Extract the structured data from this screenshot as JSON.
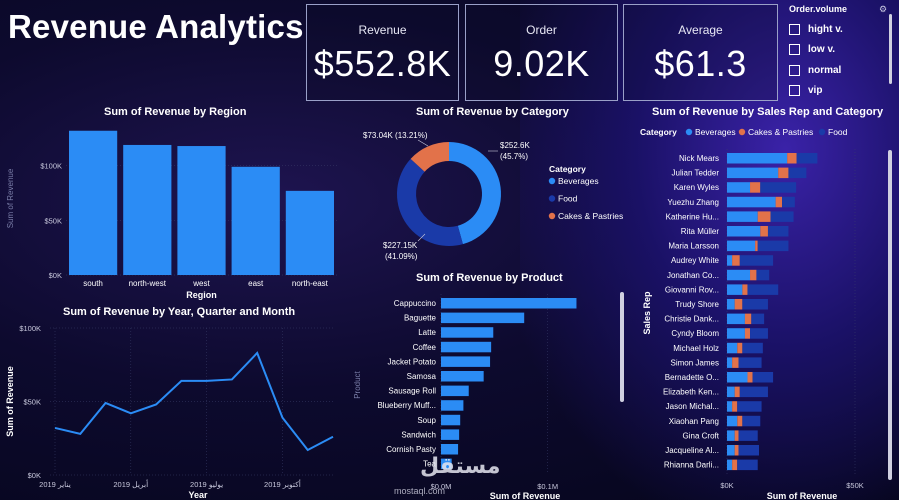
{
  "title": "Revenue Analytics",
  "kpis": [
    {
      "label": "Revenue",
      "value": "$552.8K"
    },
    {
      "label": "Order",
      "value": "9.02K"
    },
    {
      "label": "Average",
      "value": "$61.3"
    }
  ],
  "slicer": {
    "title": "Order.volume",
    "items": [
      "hight v.",
      "low v.",
      "normal",
      "vip"
    ]
  },
  "colors": {
    "beverages": "#2b8cf5",
    "food": "#1a3aa8",
    "cakes": "#e2724a"
  },
  "watermark": {
    "arabic": "مستقل",
    "latin": "mostaql.com"
  },
  "chart_data": [
    {
      "id": "region",
      "type": "bar",
      "title": "Sum of Revenue by Region",
      "xlabel": "Region",
      "ylabel": "Sum of Revenue",
      "categories": [
        "south",
        "north-west",
        "west",
        "east",
        "north-east"
      ],
      "values": [
        132000,
        119000,
        118000,
        99000,
        77000
      ],
      "ylim": [
        0,
        140000
      ],
      "yticks": [
        {
          "v": 0,
          "label": "$0K"
        },
        {
          "v": 50000,
          "label": "$50K"
        },
        {
          "v": 100000,
          "label": "$100K"
        }
      ]
    },
    {
      "id": "category",
      "type": "pie",
      "title": "Sum of Revenue by Category",
      "legend_title": "Category",
      "slices": [
        {
          "name": "Beverages",
          "value": 252600,
          "label": "$252.6K",
          "pct": "(45.7%)",
          "color": "#2b8cf5"
        },
        {
          "name": "Food",
          "value": 227150,
          "label": "$227.15K",
          "pct": "(41.09%)",
          "color": "#1a3aa8"
        },
        {
          "name": "Cakes & Pastries",
          "value": 73040,
          "label": "$73.04K (13.21%)",
          "pct": "",
          "color": "#e2724a"
        }
      ]
    },
    {
      "id": "product",
      "type": "bar",
      "orientation": "horizontal",
      "title": "Sum of Revenue by Product",
      "xlabel": "Sum of Revenue",
      "ylabel": "Product",
      "categories": [
        "Cappuccino",
        "Baguette",
        "Latte",
        "Coffee",
        "Jacket Potato",
        "Samosa",
        "Sausage Roll",
        "Blueberry Muff...",
        "Soup",
        "Sandwich",
        "Cornish Pasty",
        "Tea"
      ],
      "values": [
        127000,
        78000,
        49000,
        47000,
        46000,
        40000,
        26000,
        21000,
        18000,
        17000,
        16000,
        10000
      ],
      "xlim": [
        0,
        135000
      ],
      "xticks": [
        {
          "v": 0,
          "label": "$0.0M"
        },
        {
          "v": 100000,
          "label": "$0.1M"
        }
      ]
    },
    {
      "id": "trend",
      "type": "line",
      "title": "Sum of Revenue by Year, Quarter and Month",
      "xlabel": "Year",
      "ylabel": "Sum of Revenue",
      "values": [
        32000,
        28000,
        49000,
        42000,
        48000,
        64000,
        64000,
        65000,
        83000,
        39000,
        17000,
        26000
      ],
      "ylim": [
        0,
        100000
      ],
      "yticks": [
        {
          "v": 0,
          "label": "$0K"
        },
        {
          "v": 50000,
          "label": "$50K"
        },
        {
          "v": 100000,
          "label": "$100K"
        }
      ],
      "xticks": [
        {
          "i": 0,
          "label": "2019 يناير"
        },
        {
          "i": 3,
          "label": "2019 أبريل"
        },
        {
          "i": 6,
          "label": "2019 يوليو"
        },
        {
          "i": 9,
          "label": "2019 أكتوبر"
        }
      ]
    },
    {
      "id": "salesrep",
      "type": "bar",
      "orientation": "horizontal",
      "stacked": true,
      "title": "Sum of Revenue by Sales Rep and Category",
      "legend_title": "Category",
      "xlabel": "Sum of Revenue",
      "ylabel": "Sales Rep",
      "xlim": [
        0,
        50000
      ],
      "xticks": [
        {
          "v": 0,
          "label": "$0K"
        },
        {
          "v": 50000,
          "label": "$50K"
        }
      ],
      "series": [
        {
          "name": "Beverages",
          "color": "#2b8cf5"
        },
        {
          "name": "Cakes & Pastries",
          "color": "#e2724a"
        },
        {
          "name": "Food",
          "color": "#1a3aa8"
        }
      ],
      "rows": [
        {
          "name": "Nick Mears",
          "values": [
            23500,
            3700,
            8100
          ]
        },
        {
          "name": "Julian Tedder",
          "values": [
            20000,
            4000,
            7000
          ]
        },
        {
          "name": "Karen Wyles",
          "values": [
            9000,
            4000,
            14000
          ]
        },
        {
          "name": "Yuezhu Zhang",
          "values": [
            19000,
            2500,
            5000
          ]
        },
        {
          "name": "Katherine Hu...",
          "values": [
            12000,
            5000,
            9000
          ]
        },
        {
          "name": "Rita Müller",
          "values": [
            13000,
            3000,
            8000
          ]
        },
        {
          "name": "Maria Larsson",
          "values": [
            11000,
            1000,
            12000
          ]
        },
        {
          "name": "Audrey White",
          "values": [
            2000,
            3000,
            13000
          ]
        },
        {
          "name": "Jonathan Co...",
          "values": [
            9000,
            2500,
            5000
          ]
        },
        {
          "name": "Giovanni Rov...",
          "values": [
            6000,
            2000,
            12000
          ]
        },
        {
          "name": "Trudy Shore",
          "values": [
            3000,
            3000,
            10000
          ]
        },
        {
          "name": "Christie Dank...",
          "values": [
            7000,
            2500,
            5000
          ]
        },
        {
          "name": "Cyndy Bloom",
          "values": [
            7000,
            2000,
            7000
          ]
        },
        {
          "name": "Michael Holz",
          "values": [
            4000,
            2000,
            8000
          ]
        },
        {
          "name": "Simon James",
          "values": [
            2000,
            2500,
            9000
          ]
        },
        {
          "name": "Bernadette O...",
          "values": [
            8000,
            2000,
            8000
          ]
        },
        {
          "name": "Elizabeth Ken...",
          "values": [
            3000,
            2000,
            11000
          ]
        },
        {
          "name": "Jason Michal...",
          "values": [
            2000,
            2000,
            9500
          ]
        },
        {
          "name": "Xiaohan Pang",
          "values": [
            4000,
            2000,
            7000
          ]
        },
        {
          "name": "Gina Croft",
          "values": [
            3000,
            1500,
            7500
          ]
        },
        {
          "name": "Jacqueline Al...",
          "values": [
            3000,
            1500,
            8000
          ]
        },
        {
          "name": "Rhianna Darli...",
          "values": [
            2000,
            2000,
            8000
          ]
        }
      ]
    }
  ]
}
